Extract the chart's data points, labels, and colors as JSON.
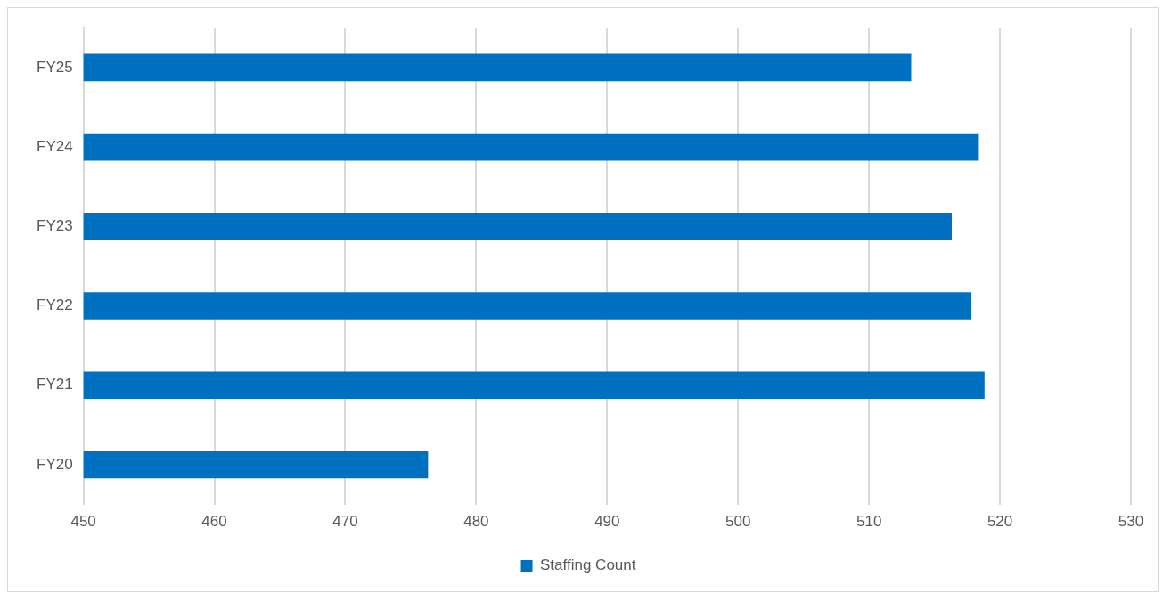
{
  "chart_data": {
    "type": "bar",
    "orientation": "horizontal",
    "categories": [
      "FY25",
      "FY24",
      "FY23",
      "FY22",
      "FY21",
      "FY20"
    ],
    "series": [
      {
        "name": "Staffing Count",
        "color": "#0070c0",
        "values": [
          513.2,
          518.3,
          516.3,
          517.8,
          518.8,
          476.3
        ]
      }
    ],
    "xlim": [
      450,
      530
    ],
    "xticks": [
      450,
      460,
      470,
      480,
      490,
      500,
      510,
      520,
      530
    ],
    "grid": "x",
    "legend": "bottom"
  }
}
